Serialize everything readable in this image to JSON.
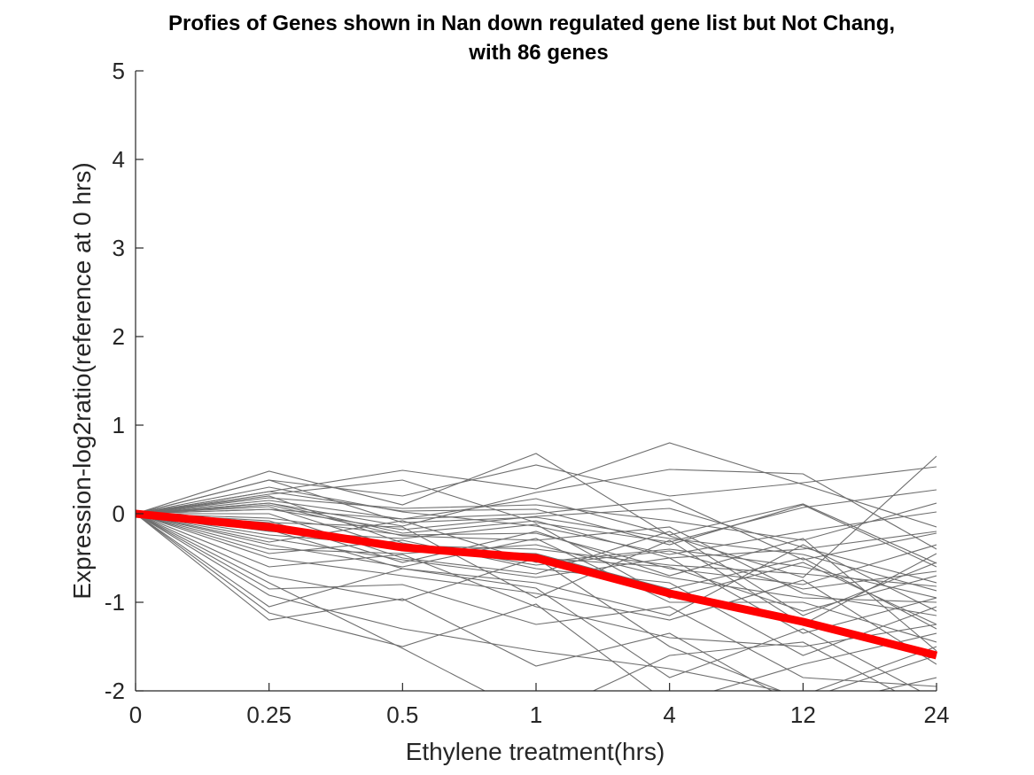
{
  "chart_data": {
    "type": "line",
    "title": "Profies of Genes shown in Nan down regulated gene list but Not Chang,",
    "subtitle": "with 86 genes",
    "xlabel": "Ethylene treatment(hrs)",
    "ylabel": "Expression-log2ratio(reference at 0 hrs)",
    "categories": [
      "0",
      "0.25",
      "0.5",
      "1",
      "4",
      "12",
      "24"
    ],
    "ylim": [
      -2,
      5
    ],
    "yticks": [
      "-2",
      "-1",
      "0",
      "1",
      "2",
      "3",
      "4",
      "5"
    ],
    "grid": false,
    "colors": {
      "genes": "#6e6e6e",
      "mean": "#ff0000",
      "axis": "#262626"
    },
    "mean_series": {
      "values": [
        0,
        -0.15,
        -0.38,
        -0.5,
        -0.9,
        -1.22,
        -1.6
      ]
    },
    "gene_series": [
      [
        0,
        0.48,
        0.1,
        0.68,
        -0.25,
        -0.72,
        0.65
      ],
      [
        0,
        0.38,
        0.2,
        0.55,
        0.2,
        0.35,
        0.53
      ],
      [
        0,
        0.25,
        0.49,
        0.28,
        0.8,
        0.33,
        -0.15
      ],
      [
        0,
        0.12,
        -0.14,
        0.24,
        0.5,
        0.45,
        -0.4
      ],
      [
        0,
        0.22,
        0.38,
        -0.1,
        -0.32,
        0.07,
        0.27
      ],
      [
        0,
        0.18,
        0.06,
        0.1,
        -0.08,
        -0.3,
        0.12
      ],
      [
        0,
        0.05,
        -0.06,
        0.0,
        0.16,
        -0.52,
        -0.22
      ],
      [
        0,
        0.3,
        0.02,
        -0.14,
        -0.46,
        -0.2,
        0.02
      ],
      [
        0,
        0.15,
        -0.06,
        0.17,
        -0.24,
        0.11,
        -0.56
      ],
      [
        0,
        0.38,
        -0.1,
        -0.04,
        -0.28,
        -0.46,
        -0.87
      ],
      [
        0,
        0.1,
        -0.25,
        -0.3,
        -0.15,
        -0.9,
        -1.15
      ],
      [
        0,
        0.05,
        -0.18,
        -0.03,
        0.06,
        -0.38,
        -0.78
      ],
      [
        0,
        -0.05,
        -0.24,
        -0.22,
        -0.62,
        -0.8,
        -0.35
      ],
      [
        0,
        -0.12,
        -0.42,
        -0.5,
        -0.6,
        -1.1,
        -0.7
      ],
      [
        0,
        -0.2,
        -0.28,
        -0.12,
        -0.95,
        -0.55,
        -1.25
      ],
      [
        0,
        -0.28,
        -0.52,
        -0.72,
        -0.5,
        -1.35,
        -0.95
      ],
      [
        0,
        -0.35,
        -0.6,
        -0.28,
        -1.0,
        -1.0,
        -1.45
      ],
      [
        0,
        -0.45,
        -0.3,
        -0.62,
        -0.78,
        -1.6,
        -1.05
      ],
      [
        0,
        -0.5,
        -0.7,
        -0.9,
        -1.2,
        -0.75,
        -1.7
      ],
      [
        0,
        -0.6,
        -0.46,
        -1.05,
        -1.4,
        -1.5,
        -1.25
      ],
      [
        0,
        -0.7,
        -0.98,
        -0.5,
        -1.5,
        -2.1,
        -1.6
      ],
      [
        0,
        -0.85,
        -0.8,
        -1.25,
        -1.05,
        -1.85,
        -1.95
      ],
      [
        0,
        -1.05,
        -0.62,
        -0.84,
        -1.85,
        -1.3,
        -2.1
      ],
      [
        0,
        -1.12,
        -1.5,
        -1.02,
        -2.15,
        -1.7,
        -1.35
      ],
      [
        0,
        -1.2,
        -0.96,
        -1.72,
        -1.35,
        -2.2,
        -1.85
      ],
      [
        0,
        -0.92,
        -1.3,
        -1.55,
        -1.75,
        -2.05,
        -1.5
      ],
      [
        0,
        -0.78,
        -1.52,
        -2.3,
        -1.6,
        -1.45,
        -2.25
      ],
      [
        0,
        -0.32,
        -0.08,
        -0.55,
        -0.4,
        -0.6,
        -0.95
      ],
      [
        0,
        -0.4,
        -0.45,
        -0.35,
        -0.72,
        -0.95,
        -1.0
      ],
      [
        0,
        0.0,
        -0.5,
        -0.68,
        -0.2,
        -1.15,
        -0.55
      ],
      [
        0,
        -0.18,
        -0.62,
        -0.78,
        -1.15,
        -0.35,
        -1.1
      ],
      [
        0,
        0.2,
        -0.33,
        -0.58,
        -0.42,
        -0.85,
        -0.65
      ],
      [
        0,
        0.08,
        -0.4,
        -0.45,
        -0.85,
        -0.5,
        -1.3
      ],
      [
        0,
        -0.1,
        -0.15,
        -0.95,
        -0.3,
        -1.25,
        -0.45
      ],
      [
        0,
        -0.08,
        -0.55,
        -0.2,
        -0.7,
        -0.28,
        -1.55
      ],
      [
        0,
        0.25,
        0.03,
        0.05,
        -0.35,
        0.1,
        -0.6
      ],
      [
        0,
        -0.24,
        -0.36,
        -0.4,
        -0.58,
        -0.68,
        -0.82
      ],
      [
        0,
        0.12,
        -0.22,
        -0.08,
        -0.5,
        -0.4,
        -0.2
      ]
    ]
  }
}
